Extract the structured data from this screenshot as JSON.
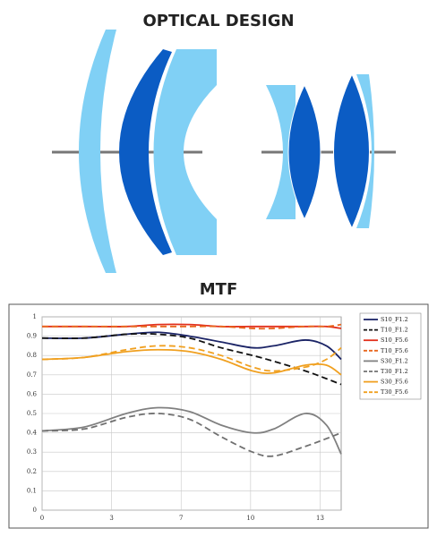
{
  "optical_design": {
    "title": "OPTICAL DESIGN"
  },
  "chart_data": {
    "type": "line",
    "title": "MTF",
    "x": [
      0,
      2,
      4,
      5.5,
      7,
      8.5,
      10,
      11,
      12.5,
      13.5,
      14.2
    ],
    "xlim": [
      0,
      14.2
    ],
    "xticks": [
      0,
      {
        "value": 3.3,
        "label": "3"
      },
      {
        "value": 6.6,
        "label": "7"
      },
      {
        "value": 9.9,
        "label": "10"
      },
      {
        "value": 13.2,
        "label": "13"
      }
    ],
    "ylim": [
      0,
      1
    ],
    "yticks": [
      0,
      0.1,
      0.2,
      0.3,
      0.4,
      0.5,
      0.6,
      0.7,
      0.8,
      0.9,
      1
    ],
    "grid": true,
    "legend": "right",
    "series": [
      {
        "name": "S10_F1.2",
        "color": "#1b2466",
        "dashed": false,
        "values": [
          0.89,
          0.89,
          0.91,
          0.92,
          0.9,
          0.87,
          0.84,
          0.85,
          0.88,
          0.85,
          0.78
        ]
      },
      {
        "name": "T10_F1.2",
        "color": "#111111",
        "dashed": true,
        "values": [
          0.89,
          0.89,
          0.91,
          0.91,
          0.89,
          0.84,
          0.8,
          0.77,
          0.72,
          0.68,
          0.65
        ]
      },
      {
        "name": "S10_F5.6",
        "color": "#e2301c",
        "dashed": false,
        "values": [
          0.95,
          0.95,
          0.95,
          0.96,
          0.96,
          0.95,
          0.95,
          0.95,
          0.95,
          0.95,
          0.94
        ]
      },
      {
        "name": "T10_F5.6",
        "color": "#e8671e",
        "dashed": true,
        "values": [
          0.95,
          0.95,
          0.95,
          0.95,
          0.95,
          0.95,
          0.94,
          0.94,
          0.95,
          0.95,
          0.96
        ]
      },
      {
        "name": "S30_F1.2",
        "color": "#808080",
        "dashed": false,
        "values": [
          0.41,
          0.43,
          0.5,
          0.53,
          0.51,
          0.44,
          0.4,
          0.42,
          0.5,
          0.44,
          0.29
        ]
      },
      {
        "name": "T30_F1.2",
        "color": "#707070",
        "dashed": true,
        "values": [
          0.41,
          0.42,
          0.48,
          0.5,
          0.47,
          0.38,
          0.3,
          0.28,
          0.33,
          0.37,
          0.4
        ]
      },
      {
        "name": "S30_F5.6",
        "color": "#f0a020",
        "dashed": false,
        "values": [
          0.78,
          0.79,
          0.82,
          0.83,
          0.82,
          0.78,
          0.72,
          0.71,
          0.75,
          0.75,
          0.7
        ]
      },
      {
        "name": "T30_F5.6",
        "color": "#f0a020",
        "dashed": true,
        "values": [
          0.78,
          0.79,
          0.83,
          0.85,
          0.84,
          0.8,
          0.74,
          0.72,
          0.74,
          0.78,
          0.84
        ]
      }
    ]
  }
}
